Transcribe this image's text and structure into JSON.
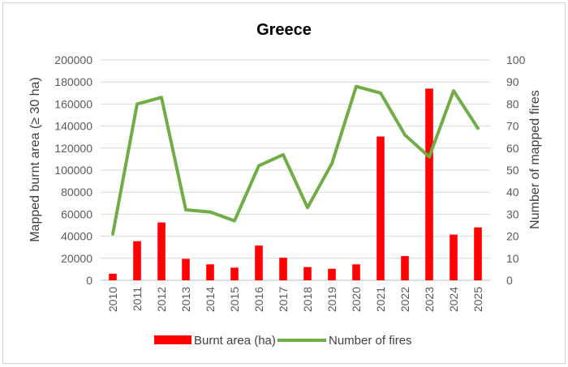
{
  "chart_data": {
    "type": "bar",
    "title": "Greece",
    "categories": [
      "2010",
      "2011",
      "2012",
      "2013",
      "2014",
      "2015",
      "2016",
      "2017",
      "2018",
      "2019",
      "2020",
      "2021",
      "2022",
      "2023",
      "2024",
      "2025"
    ],
    "series": [
      {
        "name": "Burnt area (ha)",
        "type": "bar",
        "axis": "left",
        "color": "#ff0000",
        "values": [
          6000,
          35500,
          52500,
          19500,
          14500,
          11500,
          31500,
          20500,
          12000,
          10500,
          14500,
          130500,
          22000,
          174000,
          41500,
          48000
        ]
      },
      {
        "name": "Number of fires",
        "type": "line",
        "axis": "right",
        "color": "#70ad47",
        "values": [
          21,
          80,
          83,
          32,
          31,
          27,
          52,
          57,
          33,
          53,
          88,
          85,
          66,
          56,
          86,
          69
        ]
      }
    ],
    "ylabel": "Mapped burnt area (≥ 30 ha)",
    "ylim": [
      0,
      200000
    ],
    "yticks": [
      "0",
      "20000",
      "40000",
      "60000",
      "80000",
      "100000",
      "120000",
      "140000",
      "160000",
      "180000",
      "200000"
    ],
    "y2label": "Number of mapped fires",
    "y2lim": [
      0,
      100
    ],
    "y2ticks": [
      "0",
      "10",
      "20",
      "30",
      "40",
      "50",
      "60",
      "70",
      "80",
      "90",
      "100"
    ],
    "grid": true,
    "legend_position": "bottom"
  }
}
